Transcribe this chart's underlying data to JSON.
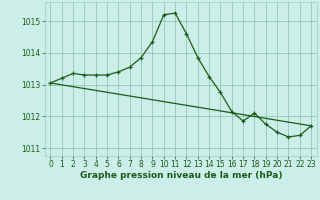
{
  "title": "Graphe pression niveau de la mer (hPa)",
  "bg_color": "#cceee8",
  "grid_color": "#99ccbb",
  "line_color": "#1a5c1a",
  "marker_color": "#1a5c1a",
  "xlim": [
    -0.5,
    23.5
  ],
  "ylim": [
    1010.75,
    1015.6
  ],
  "yticks": [
    1011,
    1012,
    1013,
    1014,
    1015
  ],
  "xticks": [
    0,
    1,
    2,
    3,
    4,
    5,
    6,
    7,
    8,
    9,
    10,
    11,
    12,
    13,
    14,
    15,
    16,
    17,
    18,
    19,
    20,
    21,
    22,
    23
  ],
  "series1_x": [
    0,
    1,
    2,
    3,
    4,
    5,
    6,
    7,
    8,
    9,
    10,
    11,
    12,
    13,
    14,
    15,
    16,
    17,
    18,
    19,
    20,
    21,
    22,
    23
  ],
  "series1_y": [
    1013.05,
    1013.2,
    1013.35,
    1013.3,
    1013.3,
    1013.3,
    1013.4,
    1013.55,
    1013.85,
    1014.35,
    1015.2,
    1015.25,
    1014.6,
    1013.85,
    1013.25,
    1012.75,
    1012.15,
    1011.85,
    1012.1,
    1011.75,
    1011.5,
    1011.35,
    1011.4,
    1011.7
  ],
  "series2_x": [
    0,
    23
  ],
  "series2_y": [
    1013.05,
    1011.7
  ],
  "xlabel_fontsize": 6.5,
  "tick_fontsize": 5.5
}
